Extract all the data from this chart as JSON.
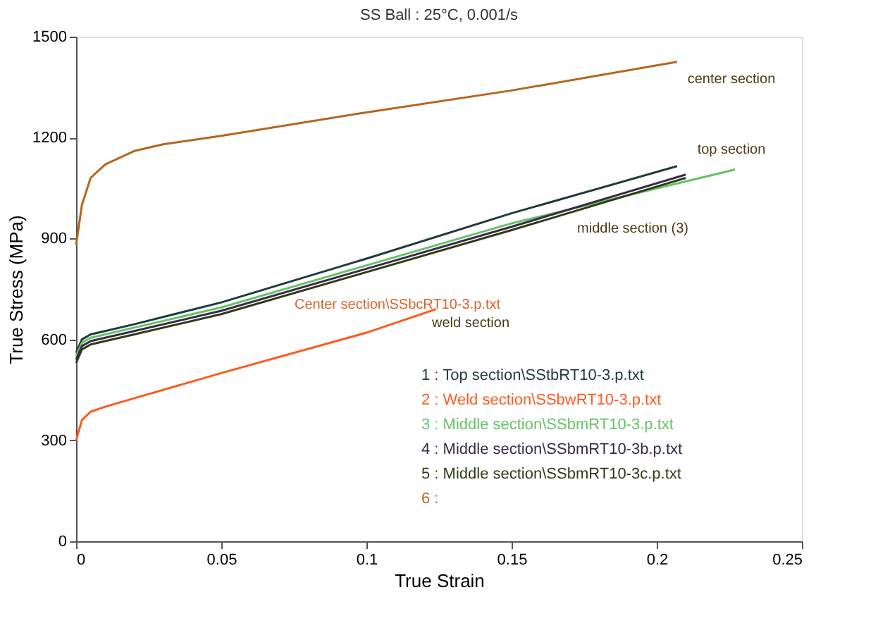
{
  "chart_data": {
    "type": "line",
    "title": "SS Ball : 25°C, 0.001/s",
    "xlabel": "True Strain",
    "ylabel": "True Stress (MPa)",
    "xlim": [
      0,
      0.25
    ],
    "xticks": [
      0,
      0.05,
      0.1,
      0.15,
      0.2,
      0.25
    ],
    "ylim": [
      0,
      1500
    ],
    "yticks": [
      0,
      300,
      600,
      900,
      1200,
      1500
    ],
    "grid": false,
    "legend": "bottom right",
    "line_style": "solid",
    "marker": "none",
    "series": [
      {
        "name": "1 : Top section\\SStbRT10-3.p.txt",
        "color": "#1f3b3b",
        "x": [
          0,
          0.002,
          0.005,
          0.01,
          0.02,
          0.05,
          0.1,
          0.15,
          0.207
        ],
        "values": [
          560,
          600,
          615,
          625,
          645,
          710,
          840,
          975,
          1115
        ]
      },
      {
        "name": "2 : Weld section\\SSbwRT10-3.p.txt",
        "color": "#ff5a1f",
        "x": [
          0,
          0.002,
          0.005,
          0.01,
          0.02,
          0.05,
          0.1,
          0.124
        ],
        "values": [
          300,
          360,
          385,
          400,
          425,
          500,
          620,
          690
        ]
      },
      {
        "name": "3 : Middle section\\SSbmRT10-3.p.txt",
        "color": "#66c266",
        "x": [
          0,
          0.002,
          0.005,
          0.01,
          0.02,
          0.05,
          0.1,
          0.15,
          0.227
        ],
        "values": [
          550,
          590,
          605,
          615,
          635,
          695,
          820,
          945,
          1105
        ]
      },
      {
        "name": "4 : Middle section\\SSbmRT10-3b.p.txt",
        "color": "#3a2a4a",
        "x": [
          0,
          0.002,
          0.005,
          0.01,
          0.02,
          0.05,
          0.1,
          0.15,
          0.21
        ],
        "values": [
          540,
          580,
          595,
          605,
          625,
          685,
          810,
          935,
          1090
        ]
      },
      {
        "name": "5 : Middle section\\SSbmRT10-3c.p.txt",
        "color": "#2e3b14",
        "x": [
          0,
          0.002,
          0.005,
          0.01,
          0.02,
          0.05,
          0.1,
          0.15,
          0.21
        ],
        "values": [
          530,
          570,
          585,
          595,
          615,
          675,
          800,
          925,
          1080
        ]
      },
      {
        "color": "#b5651d",
        "x": [
          0,
          0.002,
          0.005,
          0.01,
          0.02,
          0.03,
          0.05,
          0.1,
          0.15,
          0.207
        ],
        "values": [
          880,
          1000,
          1080,
          1120,
          1160,
          1180,
          1205,
          1275,
          1340,
          1425
        ]
      }
    ],
    "annotations": [
      "6 :",
      "center section",
      "top section",
      "middle section (3)",
      "Center section\\SSbcRT10-3.p.txt",
      "weld section"
    ]
  }
}
